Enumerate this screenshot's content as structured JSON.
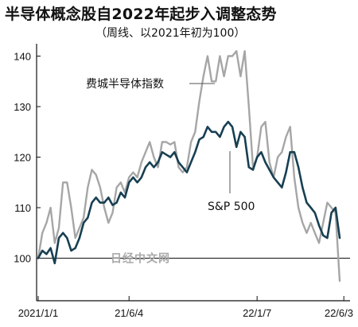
{
  "title": "半导体概念股自2022年起步入调整态势",
  "subtitle": "（周线、以2021年初为100）",
  "watermark": "日经中文网",
  "chart_data": {
    "type": "line",
    "ylim": [
      92,
      145
    ],
    "yticks": [
      100,
      110,
      120,
      130,
      140
    ],
    "xticks": [
      {
        "i": 0,
        "label": "2021/1/1"
      },
      {
        "i": 22,
        "label": "21/6/4"
      },
      {
        "i": 53,
        "label": "22/1/7"
      },
      {
        "i": 74,
        "label": "22/6/3"
      }
    ],
    "reference_line": 100,
    "colors": {
      "sox": "#a6a6a6",
      "sp500": "#173f52",
      "axis": "#111111"
    },
    "series": [
      {
        "key": "sox",
        "name": "费城半导体指数",
        "values": [
          100,
          105,
          107,
          110,
          103,
          106,
          115,
          115,
          110,
          104,
          106,
          108,
          114,
          117.5,
          116.5,
          114,
          110,
          107,
          109,
          114,
          115,
          113,
          116,
          117,
          116,
          119,
          121,
          123,
          120,
          118,
          123,
          123,
          122.5,
          123,
          118,
          117,
          118,
          123,
          125,
          131,
          136,
          140,
          135,
          135,
          140,
          136,
          140,
          140,
          141,
          136,
          141,
          130,
          118,
          120,
          126,
          127,
          119,
          116,
          120,
          121,
          124,
          126,
          116,
          110,
          107,
          105,
          107,
          105,
          103,
          107,
          111,
          110,
          109,
          95.5
        ]
      },
      {
        "key": "sp500",
        "name": "S&P 500",
        "values": [
          100,
          101.5,
          100.8,
          102,
          99,
          104,
          105,
          104,
          101.5,
          102,
          104,
          107,
          108,
          111,
          112,
          111,
          111,
          112,
          110.5,
          111,
          113,
          112,
          115,
          116,
          115,
          116,
          118,
          119,
          118,
          119,
          121,
          120.5,
          120,
          121,
          119,
          118,
          117,
          119,
          121,
          123.5,
          124,
          126,
          125,
          125,
          124,
          126,
          127,
          126,
          122,
          125,
          124,
          118,
          117.5,
          120,
          121,
          119,
          117.5,
          116,
          115,
          114,
          117,
          121,
          121,
          118,
          114,
          111,
          110,
          109,
          106.5,
          104.5,
          104,
          109,
          110,
          104
        ]
      }
    ],
    "annotations": [
      {
        "key": "sox",
        "text": "费城半导体指数"
      },
      {
        "key": "sp500",
        "text": "S&P 500"
      }
    ]
  }
}
